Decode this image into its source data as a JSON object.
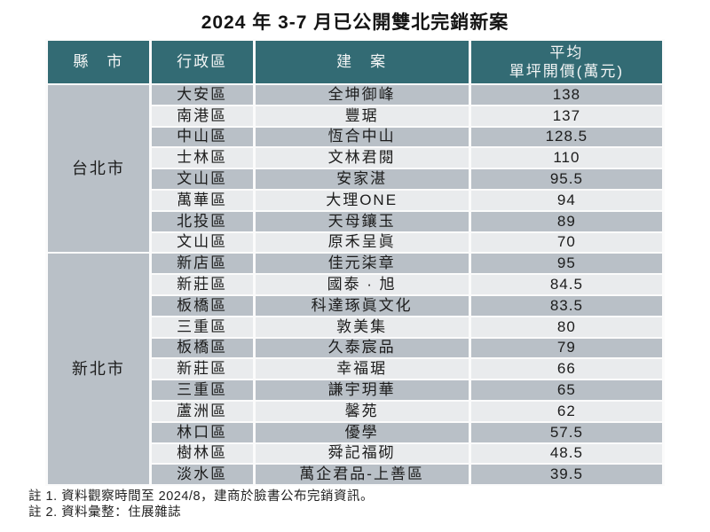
{
  "title": "2024 年 3-7 月已公開雙北完銷新案",
  "table": {
    "headers": [
      "縣　市",
      "行政區",
      "建　案",
      "平均 單坪開價(萬元)"
    ],
    "price_header": {
      "line1": "平均",
      "line2": "單坪開價(萬元)"
    },
    "groups": [
      {
        "city": "台北市",
        "rows": [
          {
            "district": "大安區",
            "project": "全坤御峰",
            "price": "138"
          },
          {
            "district": "南港區",
            "project": "豐琚",
            "price": "137"
          },
          {
            "district": "中山區",
            "project": "恆合中山",
            "price": "128.5"
          },
          {
            "district": "士林區",
            "project": "文林君閱",
            "price": "110"
          },
          {
            "district": "文山區",
            "project": "安家湛",
            "price": "95.5"
          },
          {
            "district": "萬華區",
            "project": "大理ONE",
            "price": "94"
          },
          {
            "district": "北投區",
            "project": "天母鑲玉",
            "price": "89"
          },
          {
            "district": "文山區",
            "project": "原禾呈眞",
            "price": "70"
          }
        ]
      },
      {
        "city": "新北市",
        "rows": [
          {
            "district": "新店區",
            "project": "佳元柒章",
            "price": "95"
          },
          {
            "district": "新莊區",
            "project": "國泰 · 旭",
            "price": "84.5"
          },
          {
            "district": "板橋區",
            "project": "科達琢眞文化",
            "price": "83.5"
          },
          {
            "district": "三重區",
            "project": "敦美集",
            "price": "80"
          },
          {
            "district": "板橋區",
            "project": "久泰宸品",
            "price": "79"
          },
          {
            "district": "新莊區",
            "project": "幸福琚",
            "price": "66"
          },
          {
            "district": "三重區",
            "project": "謙宇玥華",
            "price": "65"
          },
          {
            "district": "蘆洲區",
            "project": "馨苑",
            "price": "62"
          },
          {
            "district": "林口區",
            "project": "優學",
            "price": "57.5"
          },
          {
            "district": "樹林區",
            "project": "舜記福砌",
            "price": "48.5"
          },
          {
            "district": "淡水區",
            "project": "萬企君品-上善區",
            "price": "39.5"
          }
        ]
      }
    ]
  },
  "notes": [
    "註 1. 資料觀察時間至 2024/8，建商於臉書公布完銷資訊。",
    "註 2. 資料彙整：住展雜誌"
  ],
  "colors": {
    "header_teal": "#336b74",
    "row_dark": "#b9c0c7",
    "row_light": "#e9ebed",
    "border_white": "#fbfbfb",
    "text": "#1c1c1c"
  },
  "chart_data": {
    "type": "table",
    "title": "2024 年 3-7 月已公開雙北完銷新案",
    "columns": [
      "縣市",
      "行政區",
      "建案",
      "平均單坪開價(萬元)"
    ],
    "rows": [
      [
        "台北市",
        "大安區",
        "全坤御峰",
        138
      ],
      [
        "台北市",
        "南港區",
        "豐琚",
        137
      ],
      [
        "台北市",
        "中山區",
        "恆合中山",
        128.5
      ],
      [
        "台北市",
        "士林區",
        "文林君閱",
        110
      ],
      [
        "台北市",
        "文山區",
        "安家湛",
        95.5
      ],
      [
        "台北市",
        "萬華區",
        "大理ONE",
        94
      ],
      [
        "台北市",
        "北投區",
        "天母鑲玉",
        89
      ],
      [
        "台北市",
        "文山區",
        "原禾呈眞",
        70
      ],
      [
        "新北市",
        "新店區",
        "佳元柒章",
        95
      ],
      [
        "新北市",
        "新莊區",
        "國泰 · 旭",
        84.5
      ],
      [
        "新北市",
        "板橋區",
        "科達琢眞文化",
        83.5
      ],
      [
        "新北市",
        "三重區",
        "敦美集",
        80
      ],
      [
        "新北市",
        "板橋區",
        "久泰宸品",
        79
      ],
      [
        "新北市",
        "新莊區",
        "幸福琚",
        66
      ],
      [
        "新北市",
        "三重區",
        "謙宇玥華",
        65
      ],
      [
        "新北市",
        "蘆洲區",
        "馨苑",
        62
      ],
      [
        "新北市",
        "林口區",
        "優學",
        57.5
      ],
      [
        "新北市",
        "樹林區",
        "舜記福砌",
        48.5
      ],
      [
        "新北市",
        "淡水區",
        "萬企君品-上善區",
        39.5
      ]
    ],
    "notes": [
      "註 1. 資料觀察時間至 2024/8，建商於臉書公布完銷資訊。",
      "註 2. 資料彙整：住展雜誌"
    ]
  }
}
